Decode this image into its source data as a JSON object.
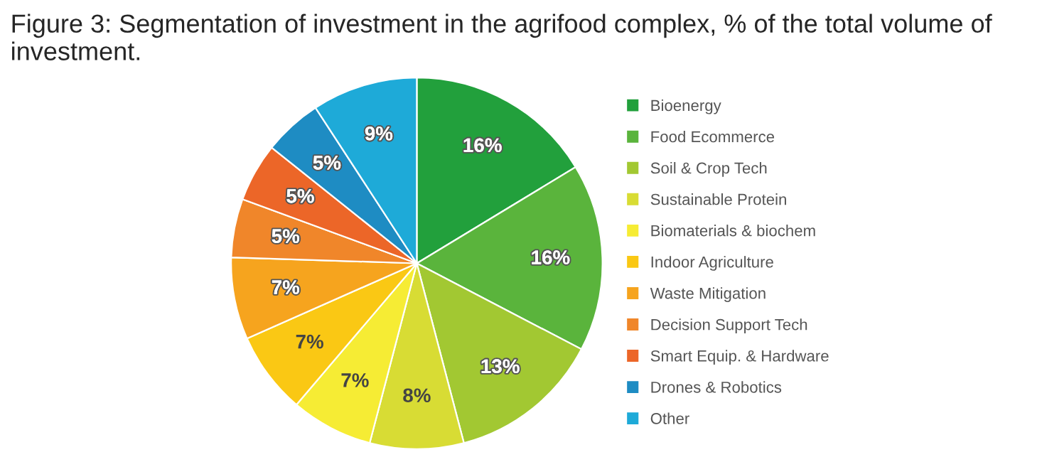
{
  "chart_data": {
    "type": "pie",
    "title": "Figure 3: Segmentation of investment in the agrifood complex, % of the total volume of investment.",
    "categories": [
      "Bioenergy",
      "Food Ecommerce",
      "Soil & Crop Tech",
      "Sustainable Protein",
      "Biomaterials & biochem",
      "Indoor Agriculture",
      "Waste Mitigation",
      "Decision Support Tech",
      "Smart Equip. & Hardware",
      "Drones & Robotics",
      "Other"
    ],
    "values": [
      16,
      16,
      13,
      8,
      7,
      7,
      7,
      5,
      5,
      5,
      9
    ],
    "value_labels": [
      "16%",
      "16%",
      "13%",
      "8%",
      "7%",
      "7%",
      "7%",
      "5%",
      "5%",
      "5%",
      "9%"
    ],
    "colors": [
      "#22a03c",
      "#5ab43c",
      "#a2c832",
      "#d8dc34",
      "#f6ec34",
      "#fac814",
      "#f6a41e",
      "#f0862a",
      "#ec6628",
      "#1e8cc3",
      "#1eaad8"
    ],
    "legend": "right"
  }
}
